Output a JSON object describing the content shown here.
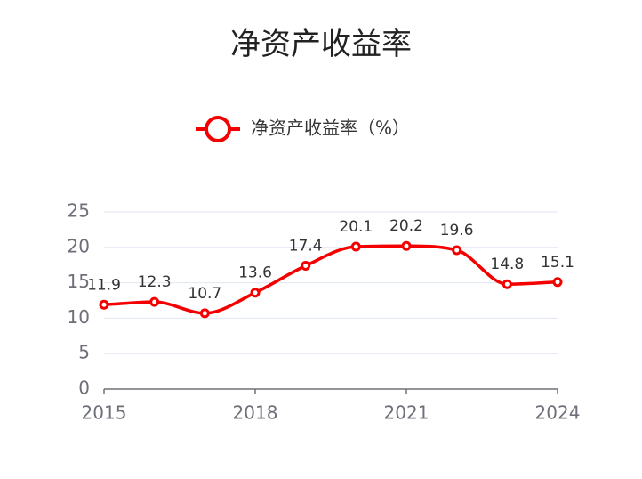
{
  "chart_data": {
    "type": "line",
    "title": "净资产收益率",
    "x": [
      2015,
      2016,
      2017,
      2018,
      2019,
      2020,
      2021,
      2022,
      2023,
      2024
    ],
    "series": [
      {
        "name": "净资产收益率（%）",
        "color": "#f40000",
        "values": [
          11.9,
          12.3,
          10.7,
          13.6,
          17.4,
          20.1,
          20.2,
          19.6,
          14.8,
          15.1
        ]
      }
    ],
    "xlim": [
      2015,
      2024
    ],
    "xticks": [
      2015,
      2018,
      2021,
      2024
    ],
    "ylim": [
      0,
      25
    ],
    "yticks": [
      0,
      5,
      10,
      15,
      20,
      25
    ],
    "grid": true,
    "legend": "top",
    "smooth": true,
    "data_labels": true
  }
}
